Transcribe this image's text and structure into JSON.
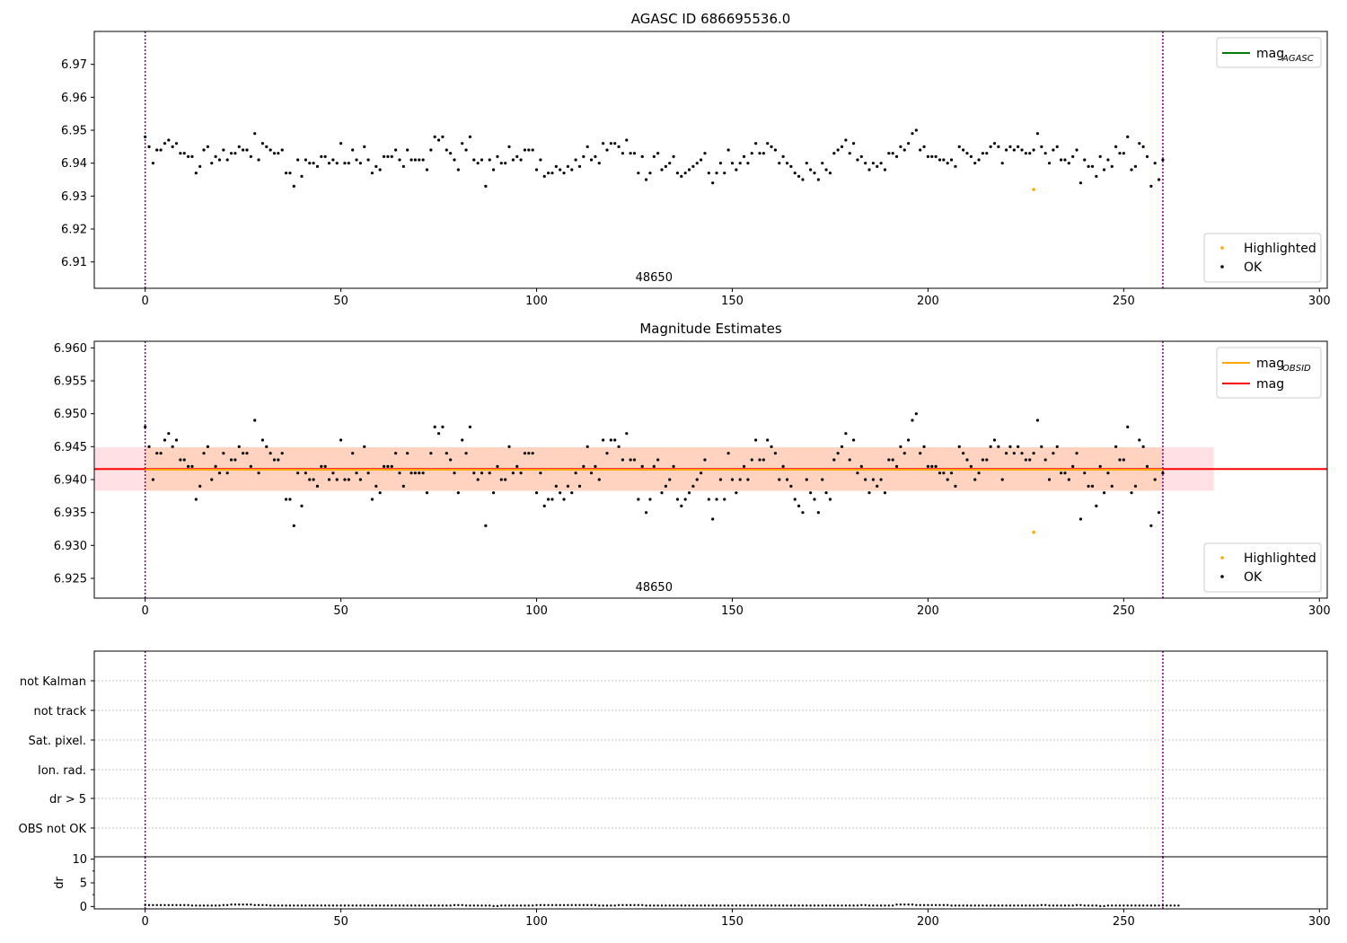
{
  "chart_data": [
    {
      "type": "scatter",
      "title": "AGASC ID 686695536.0",
      "xlim": [
        -13,
        302
      ],
      "ylim": [
        6.902,
        6.98
      ],
      "xticks": [
        0,
        50,
        100,
        150,
        200,
        250,
        300
      ],
      "yticks": [
        6.91,
        6.92,
        6.93,
        6.94,
        6.95,
        6.96,
        6.97
      ],
      "grid": false,
      "obsid_label": "48650",
      "vlines": [
        0,
        260
      ],
      "legend_lines": [
        {
          "label": "mag",
          "sub": "AGASC",
          "color": "#008000"
        }
      ],
      "legend_points": [
        {
          "label": "Highlighted",
          "color": "#ffa500"
        },
        {
          "label": "OK",
          "color": "#000000"
        }
      ],
      "legend_lines_position": "top-right",
      "legend_points_position": "bottom-right",
      "highlighted": [
        {
          "x": 227,
          "y": 6.932
        }
      ],
      "series": [
        {
          "name": "OK",
          "y": [
            6.948,
            6.945,
            6.94,
            6.944,
            6.944,
            6.946,
            6.947,
            6.945,
            6.946,
            6.943,
            6.943,
            6.942,
            6.942,
            6.937,
            6.939,
            6.944,
            6.945,
            6.94,
            6.942,
            6.941,
            6.944,
            6.941,
            6.943,
            6.943,
            6.945,
            6.944,
            6.944,
            6.942,
            6.949,
            6.941,
            6.946,
            6.945,
            6.944,
            6.943,
            6.943,
            6.944,
            6.937,
            6.937,
            6.933,
            6.941,
            6.936,
            6.941,
            6.94,
            6.94,
            6.939,
            6.942,
            6.942,
            6.94,
            6.941,
            6.94,
            6.946,
            6.94,
            6.94,
            6.944,
            6.941,
            6.94,
            6.945,
            6.941,
            6.937,
            6.939,
            6.938,
            6.942,
            6.942,
            6.942,
            6.944,
            6.941,
            6.939,
            6.944,
            6.941,
            6.941,
            6.941,
            6.941,
            6.938,
            6.944,
            6.948,
            6.947,
            6.948,
            6.944,
            6.943,
            6.941,
            6.938,
            6.946,
            6.944,
            6.948,
            6.941,
            6.94,
            6.941,
            6.933,
            6.941,
            6.938,
            6.942,
            6.94,
            6.94,
            6.945,
            6.941,
            6.942,
            6.941,
            6.944,
            6.944,
            6.944,
            6.938,
            6.941,
            6.936,
            6.937,
            6.937,
            6.939,
            6.938,
            6.937,
            6.939,
            6.938,
            6.941,
            6.939,
            6.942,
            6.945,
            6.941,
            6.942,
            6.94,
            6.946,
            6.944,
            6.946,
            6.946,
            6.945,
            6.943,
            6.947,
            6.943,
            6.943,
            6.937,
            6.942,
            6.935,
            6.937,
            6.942,
            6.943,
            6.938,
            6.939,
            6.94,
            6.942,
            6.937,
            6.936,
            6.937,
            6.938,
            6.939,
            6.94,
            6.941,
            6.943,
            6.937,
            6.934,
            6.937,
            6.94,
            6.937,
            6.944,
            6.94,
            6.938,
            6.94,
            6.942,
            6.94,
            6.943,
            6.946,
            6.943,
            6.943,
            6.946,
            6.945,
            6.944,
            6.94,
            6.942,
            6.94,
            6.939,
            6.937,
            6.936,
            6.935,
            6.94,
            6.938,
            6.937,
            6.935,
            6.94,
            6.938,
            6.937,
            6.943,
            6.944,
            6.945,
            6.947,
            6.943,
            6.946,
            6.941,
            6.942,
            6.94,
            6.938,
            6.94,
            6.939,
            6.94,
            6.938,
            6.943,
            6.943,
            6.942,
            6.945,
            6.944,
            6.946,
            6.949,
            6.95,
            6.944,
            6.945,
            6.942,
            6.942,
            6.942,
            6.941,
            6.941,
            6.94,
            6.941,
            6.939,
            6.945,
            6.944,
            6.943,
            6.942,
            6.94,
            6.941,
            6.943,
            6.943,
            6.945,
            6.946,
            6.945,
            6.94,
            6.944,
            6.945,
            6.944,
            6.945,
            6.944,
            6.943,
            6.943,
            6.944,
            6.949,
            6.945,
            6.943,
            6.94,
            6.944,
            6.945,
            6.941,
            6.941,
            6.94,
            6.942,
            6.944,
            6.934,
            6.941,
            6.939,
            6.939,
            6.936,
            6.942,
            6.938,
            6.941,
            6.939,
            6.945,
            6.943,
            6.943,
            6.948,
            6.938,
            6.939,
            6.946,
            6.945,
            6.942,
            6.933,
            6.94,
            6.935,
            6.941
          ]
        }
      ]
    },
    {
      "type": "scatter",
      "title": "Magnitude Estimates",
      "xlim": [
        -13,
        302
      ],
      "ylim": [
        6.922,
        6.961
      ],
      "xticks": [
        0,
        50,
        100,
        150,
        200,
        250,
        300
      ],
      "yticks": [
        6.925,
        6.93,
        6.935,
        6.94,
        6.945,
        6.95,
        6.955,
        6.96
      ],
      "grid": false,
      "obsid_label": "48650",
      "vlines": [
        0,
        260
      ],
      "mag": 6.9416,
      "mag_band": [
        6.9383,
        6.9449
      ],
      "mag_band_x": [
        -13,
        273
      ],
      "mag_obsid": 6.9415,
      "mag_obsid_band": [
        6.9383,
        6.9449
      ],
      "mag_obsid_x": [
        0,
        260
      ],
      "legend_lines": [
        {
          "label": "mag",
          "sub": "OBSID",
          "color": "#ffa500"
        },
        {
          "label": "mag",
          "sub": "",
          "color": "#ff0000"
        }
      ],
      "legend_points": [
        {
          "label": "Highlighted",
          "color": "#ffa500"
        },
        {
          "label": "OK",
          "color": "#000000"
        }
      ],
      "legend_lines_position": "top-right",
      "legend_points_position": "bottom-right",
      "highlighted": [
        {
          "x": 227,
          "y": 6.932
        }
      ]
    },
    {
      "type": "table",
      "xlim": [
        -13,
        302
      ],
      "flag_labels": [
        "not Kalman",
        "not track",
        "Sat. pixel.",
        "Ion. rad.",
        "dr > 5",
        "OBS not OK"
      ],
      "flags_set": [],
      "vlines": [
        0,
        260
      ],
      "grid": true
    },
    {
      "type": "scatter",
      "xlim": [
        -13,
        302
      ],
      "ylim": [
        -0.5,
        10.5
      ],
      "xticks": [
        0,
        50,
        100,
        150,
        200,
        250,
        300
      ],
      "yticks": [
        0,
        5,
        10
      ],
      "ylabel": "dr",
      "vlines": [
        0,
        260
      ],
      "grid": false,
      "series": [
        {
          "name": "dr",
          "y": [
            0.3,
            0.3,
            0.3,
            0.3,
            0.3,
            0.3,
            0.3,
            0.3,
            0.3,
            0.3,
            0.3,
            0.3,
            0.2,
            0.2,
            0.2,
            0.2,
            0.2,
            0.2,
            0.2,
            0.2,
            0.3,
            0.3,
            0.4,
            0.4,
            0.4,
            0.4,
            0.4,
            0.4,
            0.3,
            0.3,
            0.3,
            0.3,
            0.2,
            0.2,
            0.2,
            0.2,
            0.2,
            0.2,
            0.2,
            0.2,
            0.2,
            0.2,
            0.2,
            0.2,
            0.2,
            0.2,
            0.2,
            0.2,
            0.2,
            0.2,
            0.2,
            0.2,
            0.2,
            0.2,
            0.2,
            0.2,
            0.2,
            0.2,
            0.2,
            0.2,
            0.2,
            0.2,
            0.2,
            0.2,
            0.2,
            0.2,
            0.2,
            0.2,
            0.2,
            0.2,
            0.2,
            0.2,
            0.2,
            0.2,
            0.2,
            0.2,
            0.2,
            0.2,
            0.2,
            0.3,
            0.3,
            0.3,
            0.2,
            0.2,
            0.2,
            0.2,
            0.2,
            0.2,
            0.2,
            0.1,
            0.1,
            0.2,
            0.2,
            0.2,
            0.2,
            0.2,
            0.2,
            0.2,
            0.2,
            0.2,
            0.3,
            0.3,
            0.3,
            0.3,
            0.3,
            0.3,
            0.3,
            0.3,
            0.3,
            0.3,
            0.3,
            0.3,
            0.3,
            0.3,
            0.3,
            0.3,
            0.2,
            0.2,
            0.2,
            0.2,
            0.2,
            0.3,
            0.3,
            0.3,
            0.3,
            0.3,
            0.3,
            0.3,
            0.2,
            0.2,
            0.2,
            0.2,
            0.2,
            0.2,
            0.2,
            0.2,
            0.2,
            0.2,
            0.2,
            0.2,
            0.2,
            0.2,
            0.2,
            0.2,
            0.2,
            0.2,
            0.2,
            0.2,
            0.2,
            0.2,
            0.2,
            0.2,
            0.2,
            0.2,
            0.2,
            0.2,
            0.2,
            0.2,
            0.2,
            0.2,
            0.2,
            0.2,
            0.2,
            0.2,
            0.2,
            0.2,
            0.2,
            0.2,
            0.2,
            0.2,
            0.2,
            0.2,
            0.2,
            0.2,
            0.2,
            0.2,
            0.2,
            0.2,
            0.2,
            0.2,
            0.2,
            0.2,
            0.2,
            0.3,
            0.3,
            0.2,
            0.2,
            0.2,
            0.2,
            0.2,
            0.2,
            0.2,
            0.4,
            0.4,
            0.4,
            0.4,
            0.4,
            0.3,
            0.3,
            0.3,
            0.3,
            0.3,
            0.3,
            0.3,
            0.3,
            0.3,
            0.2,
            0.2,
            0.2,
            0.2,
            0.2,
            0.2,
            0.2,
            0.2,
            0.2,
            0.2,
            0.2,
            0.2,
            0.2,
            0.2,
            0.2,
            0.2,
            0.2,
            0.2,
            0.2,
            0.2,
            0.2,
            0.2,
            0.2,
            0.3,
            0.3,
            0.2,
            0.2,
            0.2,
            0.2,
            0.2,
            0.2,
            0.2,
            0.3,
            0.3,
            0.2,
            0.2,
            0.2,
            0.2,
            0.1,
            0.1,
            0.2,
            0.2,
            0.2,
            0.2,
            0.2,
            0.2,
            0.2,
            0.2,
            0.2,
            0.2,
            0.2,
            0.2,
            0.2,
            0.2,
            0.2,
            0.2,
            0.2,
            0.2,
            0.2
          ]
        }
      ]
    }
  ],
  "colors": {
    "vline": "#800080",
    "band_red": "#ffe0e4",
    "band_orange": "#ffd0b8",
    "grid": "#b0b0b0"
  }
}
